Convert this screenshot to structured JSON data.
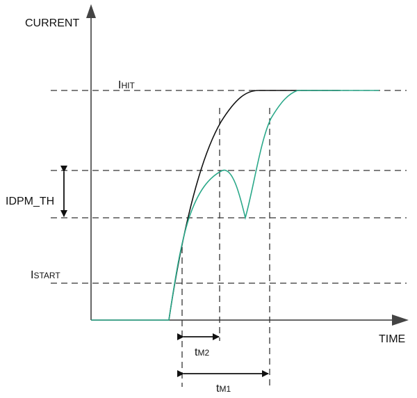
{
  "axes": {
    "y_label": "CURRENT",
    "x_label": "TIME"
  },
  "levels": [
    {
      "main": "I",
      "sub": "HIT"
    },
    {
      "main": "IDPM_TH",
      "sub": ""
    },
    {
      "main": "I",
      "sub": "START"
    }
  ],
  "intervals": [
    {
      "main": "t",
      "sub": "M2"
    },
    {
      "main": "t",
      "sub": "M1"
    }
  ],
  "colors": {
    "reference_curve": "#111111",
    "measured_curve": "#2aa889",
    "axis": "#333333"
  }
}
